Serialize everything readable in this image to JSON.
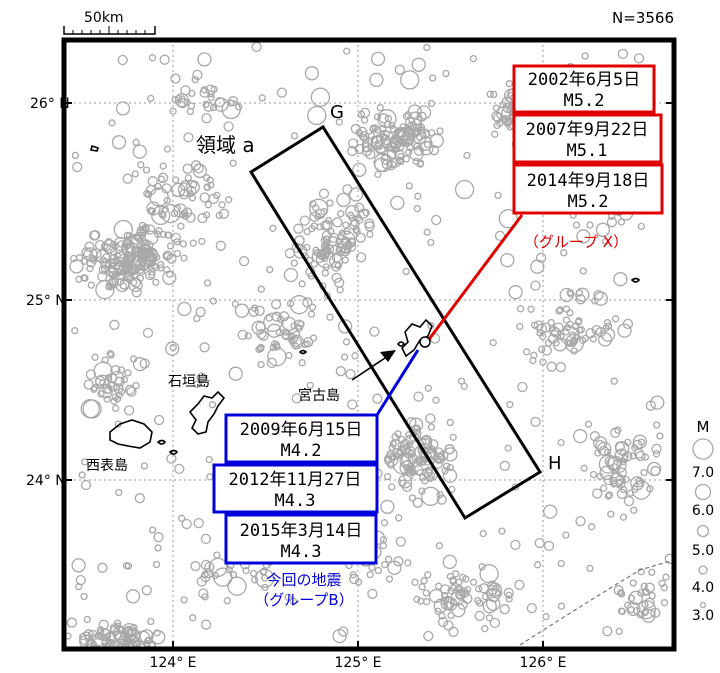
{
  "scale_bar": {
    "label": "50km"
  },
  "count": "N=3566",
  "axes": {
    "lat_ticks": [
      "26° N",
      "25° N",
      "24° N"
    ],
    "lon_ticks": [
      "124° E",
      "125° E",
      "126° E"
    ]
  },
  "labels": {
    "region": "領域 a",
    "point_g": "G",
    "point_h": "H",
    "ishigaki": "石垣島",
    "iriomote": "西表島",
    "miyako": "宮古島"
  },
  "group_x": {
    "color": "#e00000",
    "caption": "（グループ X）",
    "events": [
      {
        "date": "2002年6月5日",
        "mag": "M5.2"
      },
      {
        "date": "2007年9月22日",
        "mag": "M5.1"
      },
      {
        "date": "2014年9月18日",
        "mag": "M5.2"
      }
    ]
  },
  "group_b": {
    "color": "#0000dd",
    "caption_line1": "今回の地震",
    "caption_line2": "（グループB）",
    "events": [
      {
        "date": "2009年6月15日",
        "mag": "M4.2"
      },
      {
        "date": "2012年11月27日",
        "mag": "M4.3"
      },
      {
        "date": "2015年3月14日",
        "mag": "M4.3"
      }
    ]
  },
  "legend": {
    "title": "M",
    "magnitudes": [
      "7.0",
      "6.0",
      "5.0",
      "4.0",
      "3.0"
    ]
  },
  "colors": {
    "epicenter": "#a8a8a8",
    "frame": "#000000",
    "grid": "#9a9a9a"
  }
}
